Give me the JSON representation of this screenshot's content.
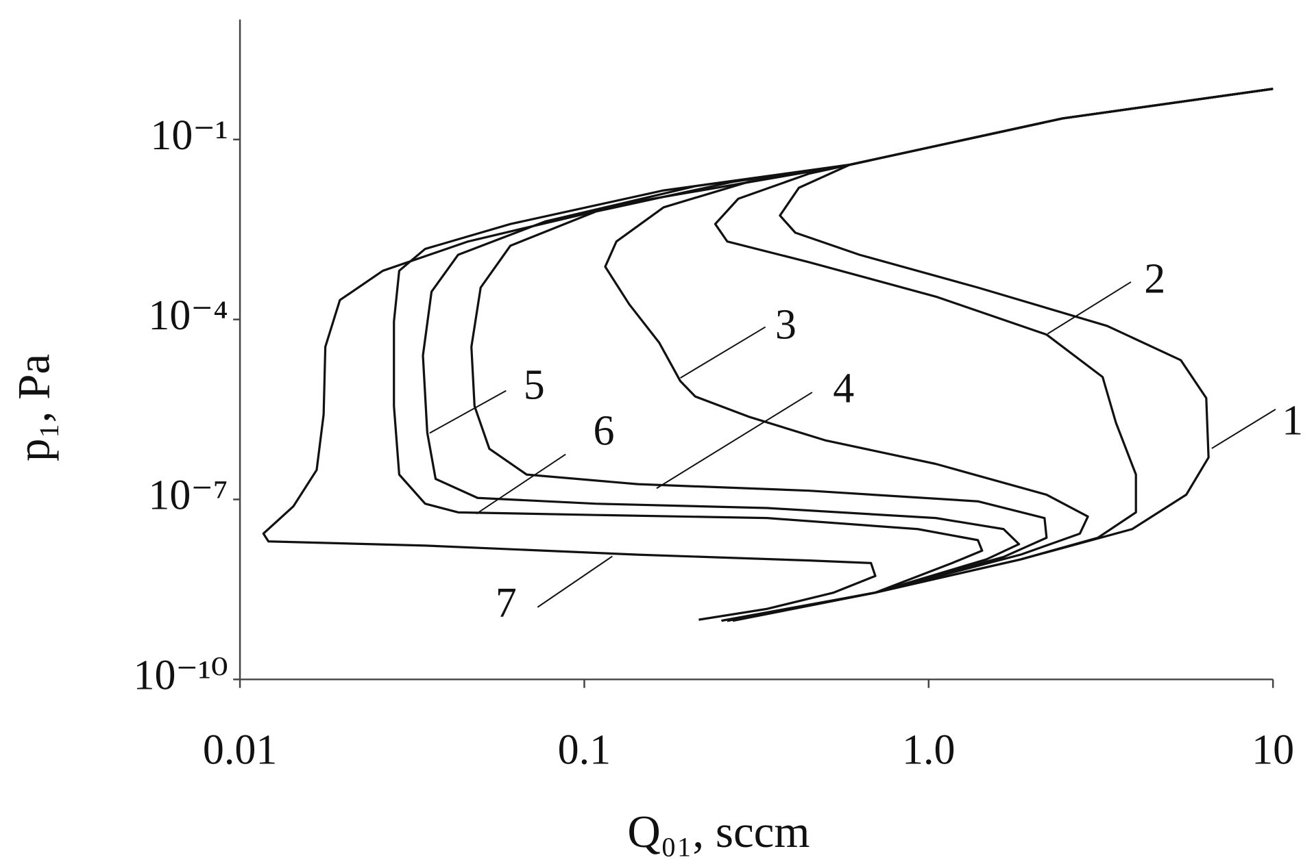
{
  "chart_data": {
    "type": "line",
    "xlabel": "Q₀₁, sccm",
    "ylabel": "p₁, Pa",
    "xscale": "log",
    "yscale": "log",
    "xlim": [
      0.01,
      10
    ],
    "ylim": [
      1e-10,
      10
    ],
    "xticks": [
      0.01,
      0.1,
      {
        "value": 1,
        "label": "1.0"
      },
      10
    ],
    "yticks": [
      {
        "value": 1e-10,
        "label": "10⁻¹⁰"
      },
      {
        "value": 1e-07,
        "label": "10⁻⁷"
      },
      {
        "value": 0.0001,
        "label": "10⁻⁴"
      },
      {
        "value": 0.1,
        "label": "10⁻¹"
      }
    ],
    "grid": false,
    "series": [
      {
        "name": "1",
        "color": "#111111",
        "x": [
          10,
          2.45,
          0.59,
          0.42,
          0.37,
          0.41,
          0.63,
          1.39,
          3.3,
          5.4,
          6.4,
          6.5,
          5.6,
          3.9,
          1.85,
          0.7,
          0.27
        ],
        "values": [
          0.7,
          0.225,
          0.038,
          0.0157,
          0.0054,
          0.0028,
          0.0012,
          0.00034,
          7.8e-05,
          2.1e-05,
          4.9e-06,
          5e-07,
          1.2e-07,
          3.2e-08,
          1e-08,
          2.8e-09,
          9.5e-10
        ]
      },
      {
        "name": "2",
        "color": "#111111",
        "x": [
          10,
          2.45,
          0.59,
          0.45,
          0.28,
          0.24,
          0.26,
          0.45,
          1.05,
          2.2,
          3.2,
          3.5,
          4.0,
          4.0,
          3.1,
          1.85,
          0.7,
          0.27
        ],
        "values": [
          0.7,
          0.225,
          0.038,
          0.027,
          0.0103,
          0.0039,
          0.002,
          0.0009,
          0.00024,
          5.6e-05,
          1.1e-05,
          1.9e-06,
          2.6e-07,
          6.1e-08,
          2.3e-08,
          1e-08,
          2.8e-09,
          9.5e-10
        ]
      },
      {
        "name": "3",
        "color": "#111111",
        "x": [
          10,
          2.45,
          0.59,
          0.3,
          0.17,
          0.124,
          0.115,
          0.135,
          0.165,
          0.19,
          0.21,
          0.3,
          0.5,
          1.05,
          2.2,
          2.9,
          2.75,
          1.85,
          0.7,
          0.26
        ],
        "values": [
          0.7,
          0.225,
          0.038,
          0.0197,
          0.0074,
          0.002,
          0.00076,
          0.00018,
          4.1e-05,
          9.4e-06,
          5.2e-06,
          2.4e-06,
          9.7e-07,
          3.9e-07,
          1.2e-07,
          5.2e-08,
          2.7e-08,
          1.2e-08,
          2.8e-09,
          9.5e-10
        ]
      },
      {
        "name": "4",
        "color": "#111111",
        "x": [
          10,
          2.45,
          0.59,
          0.27,
          0.108,
          0.061,
          0.05,
          0.047,
          0.048,
          0.053,
          0.068,
          0.143,
          0.45,
          1.39,
          2.17,
          2.2,
          1.65,
          0.7,
          0.26
        ],
        "values": [
          0.7,
          0.225,
          0.038,
          0.0197,
          0.0063,
          0.0017,
          0.00034,
          3.5e-05,
          3.6e-06,
          7e-07,
          2.6e-07,
          1.8e-07,
          1.4e-07,
          9.3e-08,
          4.9e-08,
          2.3e-08,
          1.1e-08,
          2.8e-09,
          9.5e-10
        ]
      },
      {
        "name": "5",
        "color": "#111111",
        "x": [
          10,
          2.45,
          0.59,
          0.21,
          0.077,
          0.043,
          0.036,
          0.034,
          0.035,
          0.037,
          0.049,
          0.108,
          0.34,
          1.05,
          1.65,
          1.83,
          1.47,
          0.7,
          0.26
        ],
        "values": [
          0.7,
          0.225,
          0.038,
          0.0167,
          0.0043,
          0.0012,
          0.00029,
          2.5e-05,
          1.3e-06,
          2.2e-07,
          1.06e-07,
          8.5e-08,
          7.2e-08,
          4.9e-08,
          3.2e-08,
          1.8e-08,
          1e-08,
          2.8e-09,
          9.5e-10
        ]
      },
      {
        "name": "6",
        "color": "#111111",
        "x": [
          10,
          2.45,
          0.59,
          0.17,
          0.061,
          0.0345,
          0.029,
          0.028,
          0.028,
          0.029,
          0.0345,
          0.043,
          0.108,
          0.34,
          0.93,
          1.39,
          1.43,
          1.17,
          0.7,
          0.25
        ],
        "values": [
          0.7,
          0.225,
          0.038,
          0.0142,
          0.0039,
          0.0015,
          0.00065,
          9.2e-05,
          3.6e-06,
          2.6e-07,
          8.5e-08,
          6.1e-08,
          5.5e-08,
          4.9e-08,
          3.2e-08,
          2.1e-08,
          1.4e-08,
          8.7e-09,
          2.8e-09,
          9.5e-10
        ]
      },
      {
        "name": "7",
        "color": "#111111",
        "x": [
          10,
          2.45,
          0.59,
          0.143,
          0.046,
          0.026,
          0.0195,
          0.0177,
          0.0175,
          0.0167,
          0.0143,
          0.0117,
          0.0121,
          0.0345,
          0.143,
          0.45,
          0.68,
          0.7,
          0.53,
          0.34,
          0.215
        ],
        "values": [
          0.7,
          0.225,
          0.038,
          0.0093,
          0.002,
          0.00065,
          0.00021,
          3.5e-05,
          2.6e-06,
          3.1e-07,
          7.7e-08,
          2.7e-08,
          2e-08,
          1.7e-08,
          1.2e-08,
          9.6e-09,
          8.7e-09,
          5.3e-09,
          2.8e-09,
          1.5e-09,
          9.9e-10
        ]
      }
    ]
  }
}
